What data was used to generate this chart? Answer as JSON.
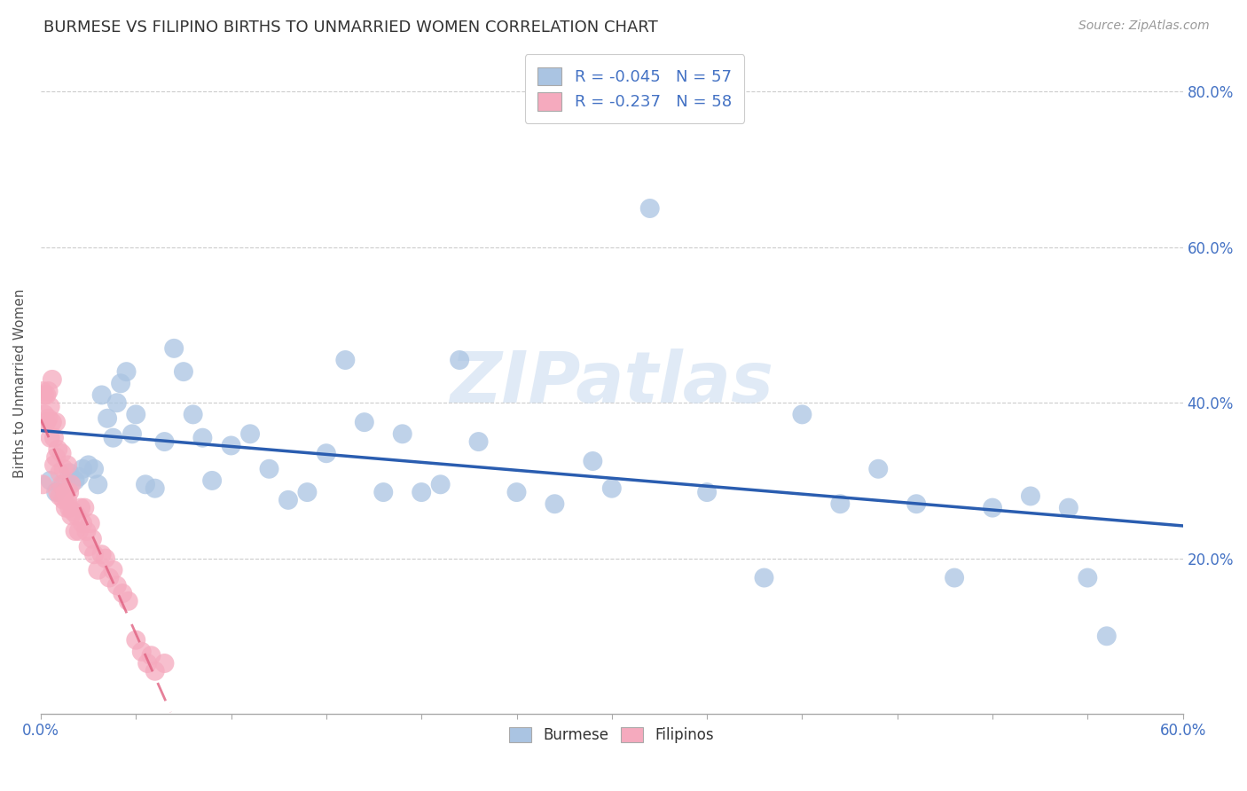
{
  "title": "BURMESE VS FILIPINO BIRTHS TO UNMARRIED WOMEN CORRELATION CHART",
  "source": "Source: ZipAtlas.com",
  "ylabel": "Births to Unmarried Women",
  "xlim": [
    0,
    0.6
  ],
  "ylim": [
    0,
    0.85
  ],
  "burmese_R": -0.045,
  "burmese_N": 57,
  "filipino_R": -0.237,
  "filipino_N": 58,
  "burmese_color": "#aac4e2",
  "filipino_color": "#f5aabe",
  "burmese_trend_color": "#2a5db0",
  "filipino_trend_color": "#e06080",
  "watermark": "ZIPatlas",
  "legend_label1": "Burmese",
  "legend_label2": "Filipinos",
  "burmese_x": [
    0.005,
    0.008,
    0.012,
    0.015,
    0.018,
    0.02,
    0.022,
    0.025,
    0.028,
    0.03,
    0.032,
    0.035,
    0.038,
    0.04,
    0.042,
    0.045,
    0.048,
    0.05,
    0.055,
    0.06,
    0.065,
    0.07,
    0.075,
    0.08,
    0.085,
    0.09,
    0.1,
    0.11,
    0.12,
    0.13,
    0.14,
    0.15,
    0.16,
    0.17,
    0.18,
    0.19,
    0.2,
    0.21,
    0.22,
    0.23,
    0.25,
    0.27,
    0.29,
    0.3,
    0.32,
    0.35,
    0.38,
    0.4,
    0.42,
    0.44,
    0.46,
    0.48,
    0.5,
    0.52,
    0.54,
    0.55,
    0.56
  ],
  "burmese_y": [
    0.3,
    0.285,
    0.295,
    0.31,
    0.3,
    0.305,
    0.315,
    0.32,
    0.315,
    0.295,
    0.41,
    0.38,
    0.355,
    0.4,
    0.425,
    0.44,
    0.36,
    0.385,
    0.295,
    0.29,
    0.35,
    0.47,
    0.44,
    0.385,
    0.355,
    0.3,
    0.345,
    0.36,
    0.315,
    0.275,
    0.285,
    0.335,
    0.455,
    0.375,
    0.285,
    0.36,
    0.285,
    0.295,
    0.455,
    0.35,
    0.285,
    0.27,
    0.325,
    0.29,
    0.65,
    0.285,
    0.175,
    0.385,
    0.27,
    0.315,
    0.27,
    0.175,
    0.265,
    0.28,
    0.265,
    0.175,
    0.1
  ],
  "filipino_x": [
    0.001,
    0.001,
    0.002,
    0.002,
    0.003,
    0.003,
    0.004,
    0.004,
    0.005,
    0.005,
    0.006,
    0.006,
    0.007,
    0.007,
    0.008,
    0.008,
    0.009,
    0.009,
    0.01,
    0.01,
    0.011,
    0.011,
    0.012,
    0.012,
    0.013,
    0.013,
    0.014,
    0.014,
    0.015,
    0.015,
    0.016,
    0.016,
    0.017,
    0.018,
    0.019,
    0.02,
    0.021,
    0.022,
    0.023,
    0.024,
    0.025,
    0.026,
    0.027,
    0.028,
    0.03,
    0.032,
    0.034,
    0.036,
    0.038,
    0.04,
    0.043,
    0.046,
    0.05,
    0.053,
    0.056,
    0.058,
    0.06,
    0.065
  ],
  "filipino_y": [
    0.295,
    0.415,
    0.385,
    0.41,
    0.375,
    0.41,
    0.38,
    0.415,
    0.395,
    0.355,
    0.375,
    0.43,
    0.355,
    0.32,
    0.33,
    0.375,
    0.285,
    0.34,
    0.28,
    0.31,
    0.295,
    0.335,
    0.275,
    0.315,
    0.285,
    0.265,
    0.275,
    0.32,
    0.265,
    0.285,
    0.295,
    0.255,
    0.26,
    0.235,
    0.255,
    0.235,
    0.265,
    0.245,
    0.265,
    0.235,
    0.215,
    0.245,
    0.225,
    0.205,
    0.185,
    0.205,
    0.2,
    0.175,
    0.185,
    0.165,
    0.155,
    0.145,
    0.095,
    0.08,
    0.065,
    0.075,
    0.055,
    0.065
  ]
}
